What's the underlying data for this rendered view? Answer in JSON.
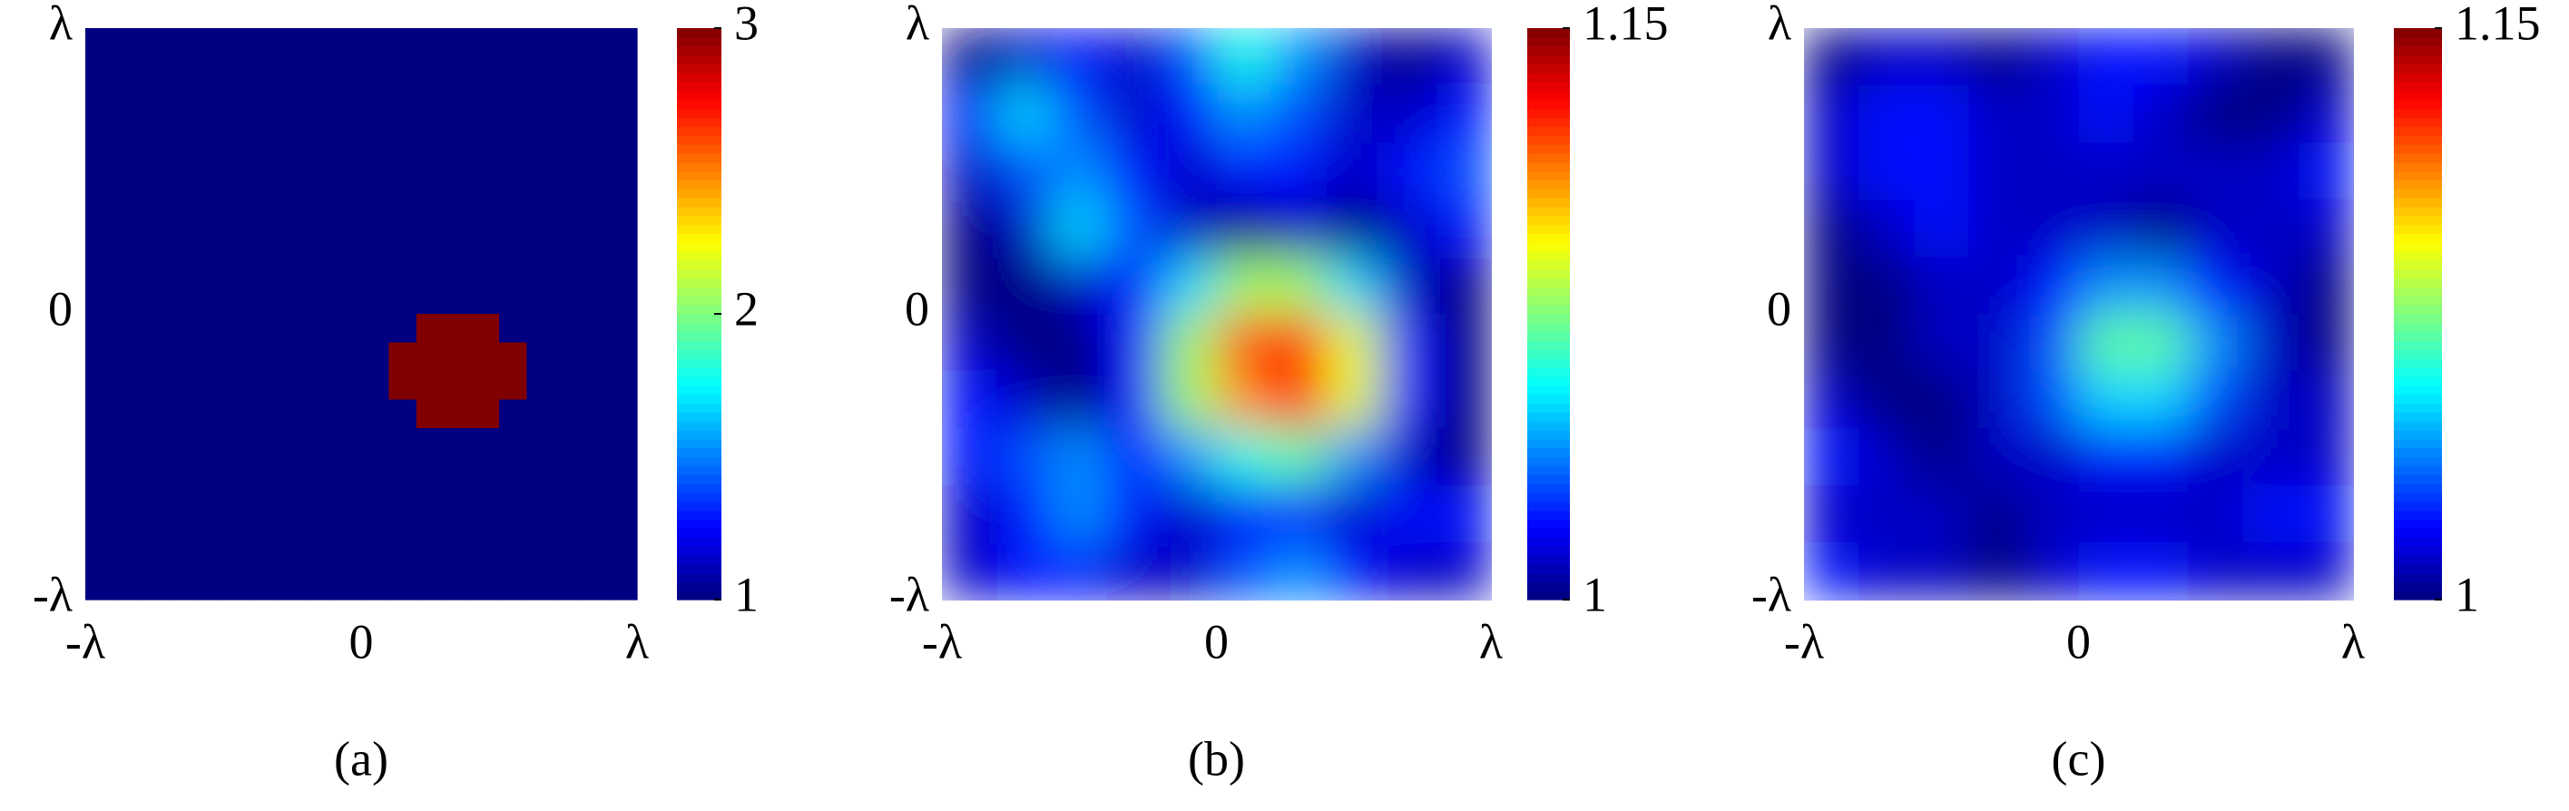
{
  "chart_data": [
    {
      "type": "heatmap",
      "label": "(a)",
      "colormap": "jet",
      "smooth": false,
      "xlim": [
        -1,
        1
      ],
      "ylim": [
        -1,
        1
      ],
      "xticks": [
        {
          "value": -1,
          "label": "-λ"
        },
        0,
        {
          "value": 1,
          "label": "λ"
        }
      ],
      "yticks": [
        {
          "value": -1,
          "label": "-λ"
        },
        0,
        {
          "value": 1,
          "label": "λ"
        }
      ],
      "clim": [
        1,
        3
      ],
      "cticks": [
        1,
        2,
        3
      ],
      "z": [
        [
          1,
          1,
          1,
          1,
          1,
          1,
          1,
          1,
          1,
          1,
          1,
          1,
          1,
          1,
          1,
          1,
          1,
          1,
          1,
          1
        ],
        [
          1,
          1,
          1,
          1,
          1,
          1,
          1,
          1,
          1,
          1,
          1,
          1,
          1,
          1,
          1,
          1,
          1,
          1,
          1,
          1
        ],
        [
          1,
          1,
          1,
          1,
          1,
          1,
          1,
          1,
          1,
          1,
          1,
          1,
          1,
          1,
          1,
          1,
          1,
          1,
          1,
          1
        ],
        [
          1,
          1,
          1,
          1,
          1,
          1,
          1,
          1,
          1,
          1,
          1,
          1,
          1,
          1,
          1,
          1,
          1,
          1,
          1,
          1
        ],
        [
          1,
          1,
          1,
          1,
          1,
          1,
          1,
          1,
          1,
          1,
          1,
          1,
          1,
          1,
          1,
          1,
          1,
          1,
          1,
          1
        ],
        [
          1,
          1,
          1,
          1,
          1,
          1,
          1,
          1,
          1,
          1,
          1,
          1,
          1,
          1,
          1,
          1,
          1,
          1,
          1,
          1
        ],
        [
          1,
          1,
          1,
          1,
          1,
          1,
          1,
          1,
          1,
          1,
          1,
          1,
          1,
          1,
          1,
          1,
          1,
          1,
          1,
          1
        ],
        [
          1,
          1,
          1,
          1,
          1,
          1,
          1,
          1,
          1,
          1,
          1,
          1,
          1,
          1,
          1,
          1,
          1,
          1,
          1,
          1
        ],
        [
          1,
          1,
          1,
          1,
          1,
          1,
          1,
          1,
          1,
          1,
          1,
          1,
          1,
          1,
          1,
          1,
          1,
          1,
          1,
          1
        ],
        [
          1,
          1,
          1,
          1,
          1,
          1,
          1,
          1,
          1,
          1,
          1,
          1,
          1,
          1,
          1,
          1,
          1,
          1,
          1,
          1
        ],
        [
          1,
          1,
          1,
          1,
          1,
          1,
          1,
          1,
          1,
          1,
          1,
          1,
          3,
          3,
          3,
          1,
          1,
          1,
          1,
          1
        ],
        [
          1,
          1,
          1,
          1,
          1,
          1,
          1,
          1,
          1,
          1,
          1,
          3,
          3,
          3,
          3,
          3,
          1,
          1,
          1,
          1
        ],
        [
          1,
          1,
          1,
          1,
          1,
          1,
          1,
          1,
          1,
          1,
          1,
          3,
          3,
          3,
          3,
          3,
          1,
          1,
          1,
          1
        ],
        [
          1,
          1,
          1,
          1,
          1,
          1,
          1,
          1,
          1,
          1,
          1,
          1,
          3,
          3,
          3,
          1,
          1,
          1,
          1,
          1
        ],
        [
          1,
          1,
          1,
          1,
          1,
          1,
          1,
          1,
          1,
          1,
          1,
          1,
          1,
          1,
          1,
          1,
          1,
          1,
          1,
          1
        ],
        [
          1,
          1,
          1,
          1,
          1,
          1,
          1,
          1,
          1,
          1,
          1,
          1,
          1,
          1,
          1,
          1,
          1,
          1,
          1,
          1
        ],
        [
          1,
          1,
          1,
          1,
          1,
          1,
          1,
          1,
          1,
          1,
          1,
          1,
          1,
          1,
          1,
          1,
          1,
          1,
          1,
          1
        ],
        [
          1,
          1,
          1,
          1,
          1,
          1,
          1,
          1,
          1,
          1,
          1,
          1,
          1,
          1,
          1,
          1,
          1,
          1,
          1,
          1
        ],
        [
          1,
          1,
          1,
          1,
          1,
          1,
          1,
          1,
          1,
          1,
          1,
          1,
          1,
          1,
          1,
          1,
          1,
          1,
          1,
          1
        ],
        [
          1,
          1,
          1,
          1,
          1,
          1,
          1,
          1,
          1,
          1,
          1,
          1,
          1,
          1,
          1,
          1,
          1,
          1,
          1,
          1
        ]
      ]
    },
    {
      "type": "heatmap",
      "label": "(b)",
      "colormap": "jet",
      "smooth": true,
      "xlim": [
        -1,
        1
      ],
      "ylim": [
        -1,
        1
      ],
      "xticks": [
        {
          "value": -1,
          "label": "-λ"
        },
        0,
        {
          "value": 1,
          "label": "λ"
        }
      ],
      "yticks": [
        {
          "value": -1,
          "label": "-λ"
        },
        0,
        {
          "value": 1,
          "label": "λ"
        }
      ],
      "clim": [
        1,
        1.15
      ],
      "cticks": [
        1,
        1.15
      ],
      "z": [
        [
          1.0,
          1.01,
          1.02,
          1.01,
          1.03,
          1.06,
          1.04,
          1.01,
          1.0,
          1.01
        ],
        [
          1.02,
          1.05,
          1.03,
          1.01,
          1.02,
          1.04,
          1.03,
          1.01,
          1.01,
          1.02
        ],
        [
          1.01,
          1.03,
          1.04,
          1.02,
          1.01,
          1.02,
          1.02,
          1.01,
          1.02,
          1.03
        ],
        [
          1.0,
          1.01,
          1.05,
          1.03,
          1.01,
          1.0,
          1.01,
          1.0,
          1.01,
          1.02
        ],
        [
          1.0,
          1.0,
          1.01,
          1.02,
          1.05,
          1.08,
          1.08,
          1.05,
          1.01,
          1.0
        ],
        [
          1.01,
          1.0,
          1.0,
          1.02,
          1.08,
          1.12,
          1.13,
          1.09,
          1.02,
          1.0
        ],
        [
          1.02,
          1.01,
          1.0,
          1.02,
          1.08,
          1.11,
          1.13,
          1.09,
          1.02,
          1.0
        ],
        [
          1.02,
          1.03,
          1.04,
          1.02,
          1.04,
          1.06,
          1.07,
          1.04,
          1.01,
          1.0
        ],
        [
          1.01,
          1.02,
          1.04,
          1.02,
          1.01,
          1.02,
          1.02,
          1.01,
          1.02,
          1.02
        ],
        [
          1.01,
          1.02,
          1.02,
          1.01,
          1.01,
          1.03,
          1.04,
          1.02,
          1.01,
          1.01
        ]
      ]
    },
    {
      "type": "heatmap",
      "label": "(c)",
      "colormap": "jet",
      "smooth": true,
      "xlim": [
        -1,
        1
      ],
      "ylim": [
        -1,
        1
      ],
      "xticks": [
        {
          "value": -1,
          "label": "-λ"
        },
        0,
        {
          "value": 1,
          "label": "λ"
        }
      ],
      "yticks": [
        {
          "value": -1,
          "label": "-λ"
        },
        0,
        {
          "value": 1,
          "label": "λ"
        }
      ],
      "clim": [
        1,
        1.15
      ],
      "cticks": [
        1,
        1.15
      ],
      "z": [
        [
          1.0,
          1.01,
          1.01,
          1.0,
          1.01,
          1.02,
          1.02,
          1.01,
          1.0,
          1.0
        ],
        [
          1.01,
          1.02,
          1.02,
          1.01,
          1.01,
          1.02,
          1.01,
          1.0,
          1.0,
          1.01
        ],
        [
          1.01,
          1.02,
          1.02,
          1.01,
          1.01,
          1.01,
          1.01,
          1.01,
          1.01,
          1.02
        ],
        [
          1.0,
          1.01,
          1.02,
          1.01,
          1.01,
          1.01,
          1.0,
          1.01,
          1.01,
          1.01
        ],
        [
          1.0,
          1.0,
          1.01,
          1.01,
          1.02,
          1.04,
          1.04,
          1.02,
          1.01,
          1.0
        ],
        [
          1.0,
          1.0,
          1.01,
          1.01,
          1.03,
          1.07,
          1.07,
          1.04,
          1.01,
          1.0
        ],
        [
          1.01,
          1.0,
          1.0,
          1.01,
          1.03,
          1.05,
          1.05,
          1.03,
          1.01,
          1.01
        ],
        [
          1.02,
          1.01,
          1.0,
          1.01,
          1.01,
          1.02,
          1.02,
          1.01,
          1.01,
          1.01
        ],
        [
          1.01,
          1.01,
          1.01,
          1.0,
          1.01,
          1.01,
          1.01,
          1.01,
          1.02,
          1.02
        ],
        [
          1.02,
          1.01,
          1.01,
          1.0,
          1.01,
          1.02,
          1.02,
          1.01,
          1.01,
          1.01
        ]
      ]
    }
  ]
}
